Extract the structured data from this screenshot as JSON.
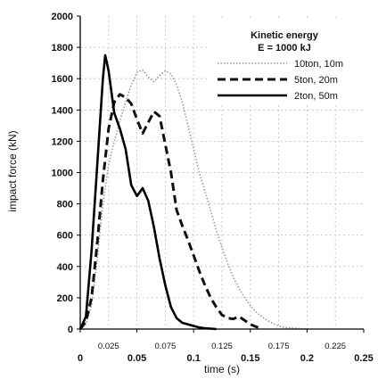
{
  "chart_data": {
    "type": "line",
    "xlabel": "time (s)",
    "ylabel": "impact force (kN)",
    "xlim": [
      0,
      0.25
    ],
    "ylim": [
      0,
      2000
    ],
    "grid": true,
    "x_ticks_major": [
      "0",
      "0.05",
      "0.1",
      "0.15",
      "0.2",
      "0.25"
    ],
    "x_ticks_minor": [
      "0.025",
      "0.075",
      "0.125",
      "0.175",
      "0.225"
    ],
    "y_ticks": [
      "0",
      "200",
      "400",
      "600",
      "800",
      "1000",
      "1200",
      "1400",
      "1600",
      "1800",
      "2000"
    ],
    "legend": {
      "title_line1": "Kinetic energy",
      "title_line2": "E = 1000 kJ",
      "placement": "top-right"
    },
    "series": [
      {
        "name": "10ton, 10m",
        "style": "dotted",
        "color": "#9a9a9a",
        "points": [
          [
            0,
            0
          ],
          [
            0.005,
            30
          ],
          [
            0.01,
            150
          ],
          [
            0.015,
            450
          ],
          [
            0.02,
            800
          ],
          [
            0.025,
            1050
          ],
          [
            0.03,
            1200
          ],
          [
            0.035,
            1330
          ],
          [
            0.04,
            1450
          ],
          [
            0.045,
            1560
          ],
          [
            0.05,
            1640
          ],
          [
            0.055,
            1655
          ],
          [
            0.06,
            1610
          ],
          [
            0.065,
            1580
          ],
          [
            0.07,
            1620
          ],
          [
            0.075,
            1650
          ],
          [
            0.08,
            1630
          ],
          [
            0.085,
            1560
          ],
          [
            0.09,
            1450
          ],
          [
            0.095,
            1300
          ],
          [
            0.1,
            1150
          ],
          [
            0.105,
            1000
          ],
          [
            0.11,
            880
          ],
          [
            0.115,
            760
          ],
          [
            0.12,
            630
          ],
          [
            0.125,
            520
          ],
          [
            0.13,
            420
          ],
          [
            0.135,
            330
          ],
          [
            0.14,
            260
          ],
          [
            0.145,
            200
          ],
          [
            0.15,
            150
          ],
          [
            0.155,
            110
          ],
          [
            0.16,
            80
          ],
          [
            0.165,
            55
          ],
          [
            0.17,
            35
          ],
          [
            0.175,
            20
          ],
          [
            0.18,
            10
          ],
          [
            0.19,
            5
          ],
          [
            0.2,
            0
          ]
        ]
      },
      {
        "name": "5ton, 20m",
        "style": "dashed",
        "color": "#111111",
        "points": [
          [
            0,
            0
          ],
          [
            0.005,
            50
          ],
          [
            0.01,
            200
          ],
          [
            0.015,
            550
          ],
          [
            0.02,
            950
          ],
          [
            0.025,
            1280
          ],
          [
            0.03,
            1450
          ],
          [
            0.035,
            1500
          ],
          [
            0.04,
            1480
          ],
          [
            0.045,
            1440
          ],
          [
            0.05,
            1340
          ],
          [
            0.055,
            1250
          ],
          [
            0.06,
            1320
          ],
          [
            0.065,
            1390
          ],
          [
            0.07,
            1360
          ],
          [
            0.075,
            1180
          ],
          [
            0.08,
            1000
          ],
          [
            0.085,
            760
          ],
          [
            0.09,
            660
          ],
          [
            0.095,
            570
          ],
          [
            0.1,
            470
          ],
          [
            0.105,
            370
          ],
          [
            0.11,
            280
          ],
          [
            0.115,
            200
          ],
          [
            0.12,
            140
          ],
          [
            0.125,
            90
          ],
          [
            0.13,
            70
          ],
          [
            0.135,
            65
          ],
          [
            0.14,
            80
          ],
          [
            0.145,
            55
          ],
          [
            0.15,
            30
          ],
          [
            0.155,
            15
          ],
          [
            0.16,
            5
          ]
        ]
      },
      {
        "name": "2ton, 50m",
        "style": "solid",
        "color": "#000000",
        "points": [
          [
            0,
            0
          ],
          [
            0.005,
            80
          ],
          [
            0.01,
            500
          ],
          [
            0.015,
            1050
          ],
          [
            0.02,
            1600
          ],
          [
            0.022,
            1750
          ],
          [
            0.025,
            1650
          ],
          [
            0.03,
            1380
          ],
          [
            0.035,
            1280
          ],
          [
            0.04,
            1150
          ],
          [
            0.045,
            920
          ],
          [
            0.05,
            850
          ],
          [
            0.055,
            900
          ],
          [
            0.06,
            820
          ],
          [
            0.065,
            650
          ],
          [
            0.07,
            450
          ],
          [
            0.075,
            280
          ],
          [
            0.08,
            140
          ],
          [
            0.085,
            70
          ],
          [
            0.09,
            40
          ],
          [
            0.095,
            30
          ],
          [
            0.1,
            20
          ],
          [
            0.105,
            10
          ],
          [
            0.11,
            5
          ],
          [
            0.12,
            0
          ]
        ]
      }
    ]
  }
}
